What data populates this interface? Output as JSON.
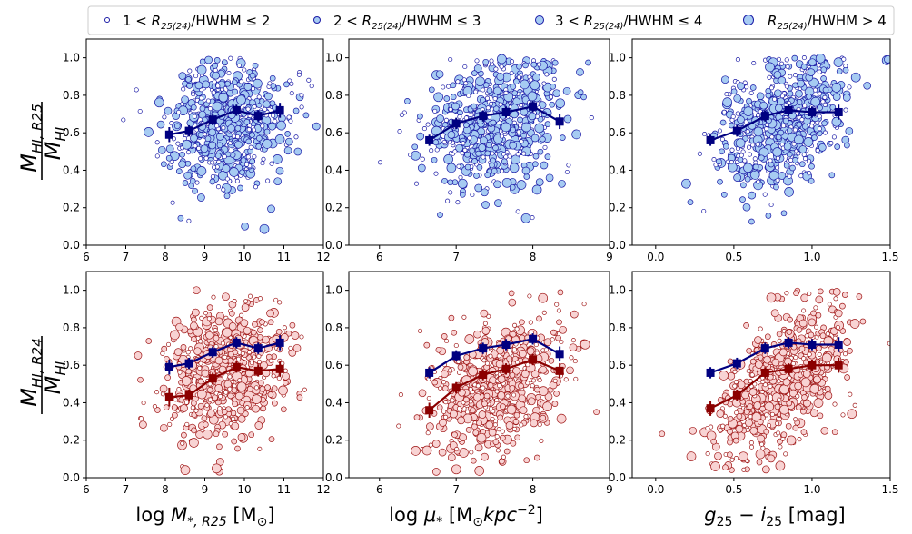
{
  "legend": {
    "placement": "top-center",
    "entries": [
      {
        "label_pre": "1 < ",
        "label_r": "R",
        "label_sub": "25(24)",
        "label_post": "/HWHM ≤ 2"
      },
      {
        "label_pre": "2 < ",
        "label_r": "R",
        "label_sub": "25(24)",
        "label_post": "/HWHM ≤ 3"
      },
      {
        "label_pre": "3 < ",
        "label_r": "R",
        "label_sub": "25(24)",
        "label_post": "/HWHM ≤ 4"
      },
      {
        "label_pre": "",
        "label_r": "R",
        "label_sub": "25(24)",
        "label_post": "/HWHM > 4"
      }
    ]
  },
  "row_labels": [
    {
      "num": "M",
      "num_sub": "HI, R25",
      "den": "M",
      "den_sub": "HI"
    },
    {
      "num": "M",
      "num_sub": "HI, R24",
      "den": "M",
      "den_sub": "HI"
    }
  ],
  "col_labels": [
    {
      "pre": "log ",
      "var": "M",
      "sub": "*, R25",
      "post": " [M",
      "post_sub": "⊙",
      "post_end": "]"
    },
    {
      "pre": "log ",
      "var": "μ",
      "sub": "*",
      "post": " [M",
      "post_sub": "⊙",
      "post_end": "kpc",
      "post_sup": "−2",
      "post_close": "]"
    },
    {
      "pre": "",
      "var": "g",
      "sub": "25",
      "post": " − ",
      "var2": "i",
      "sub2": "25",
      "post_end": " [mag]"
    }
  ],
  "colors": {
    "blue_edge": "#1a1aa6",
    "blue_fill": "#a6cbf2",
    "red_edge": "#a01818",
    "red_fill": "#f8d3d3",
    "blue_line": "#000080",
    "red_line": "#8b0000"
  },
  "chart_data": [
    {
      "type": "scatter",
      "row": 0,
      "col": 0,
      "xlim": [
        6,
        12
      ],
      "ylim": [
        0,
        1.1
      ],
      "xticks": [
        6,
        7,
        8,
        9,
        10,
        11,
        12
      ],
      "yticks": [
        0.0,
        0.2,
        0.4,
        0.6,
        0.8,
        1.0
      ],
      "xtick_labels": [
        "6",
        "7",
        "8",
        "9",
        "10",
        "11",
        "12"
      ],
      "ytick_labels": [
        "0.0",
        "0.2",
        "0.4",
        "0.6",
        "0.8",
        "1.0"
      ],
      "point_style": "blue",
      "scatter_x_center": 9.5,
      "scatter_x_spread": 1.3,
      "scatter_y_slope": 0.04,
      "scatter_y_base": 0.65,
      "binned_series": [
        {
          "style": "blue",
          "x": [
            8.1,
            8.6,
            9.2,
            9.8,
            10.35,
            10.9
          ],
          "y": [
            0.59,
            0.61,
            0.67,
            0.72,
            0.69,
            0.72
          ],
          "err": [
            0.04,
            0.03,
            0.03,
            0.03,
            0.03,
            0.04
          ]
        }
      ]
    },
    {
      "type": "scatter",
      "row": 0,
      "col": 1,
      "xlim": [
        5.6,
        9
      ],
      "ylim": [
        0,
        1.1
      ],
      "xticks": [
        6,
        7,
        8,
        9
      ],
      "yticks": [
        0.0,
        0.2,
        0.4,
        0.6,
        0.8,
        1.0
      ],
      "xtick_labels": [
        "6",
        "7",
        "8",
        "9"
      ],
      "ytick_labels": [
        "0.0",
        "0.2",
        "0.4",
        "0.6",
        "0.8",
        "1.0"
      ],
      "point_style": "blue",
      "scatter_x_center": 7.5,
      "scatter_x_spread": 0.75,
      "scatter_y_slope": 0.07,
      "scatter_y_base": 0.65,
      "binned_series": [
        {
          "style": "blue",
          "x": [
            6.65,
            7.0,
            7.35,
            7.65,
            8.0,
            8.35
          ],
          "y": [
            0.56,
            0.65,
            0.69,
            0.71,
            0.74,
            0.66
          ],
          "err": [
            0.03,
            0.03,
            0.03,
            0.03,
            0.03,
            0.04
          ]
        }
      ]
    },
    {
      "type": "scatter",
      "row": 0,
      "col": 2,
      "xlim": [
        -0.15,
        1.5
      ],
      "ylim": [
        0,
        1.1
      ],
      "xticks": [
        0.0,
        0.5,
        1.0,
        1.5
      ],
      "yticks": [
        0.0,
        0.2,
        0.4,
        0.6,
        0.8,
        1.0
      ],
      "xtick_labels": [
        "0.0",
        "0.5",
        "1.0",
        "1.5"
      ],
      "ytick_labels": [
        "0.0",
        "0.2",
        "0.4",
        "0.6",
        "0.8",
        "1.0"
      ],
      "point_style": "blue",
      "scatter_x_center": 0.8,
      "scatter_x_spread": 0.35,
      "scatter_y_slope": 0.12,
      "scatter_y_base": 0.65,
      "binned_series": [
        {
          "style": "blue",
          "x": [
            0.35,
            0.52,
            0.7,
            0.85,
            1.0,
            1.17
          ],
          "y": [
            0.56,
            0.61,
            0.69,
            0.72,
            0.71,
            0.71
          ],
          "err": [
            0.03,
            0.03,
            0.03,
            0.03,
            0.03,
            0.04
          ]
        }
      ]
    },
    {
      "type": "scatter",
      "row": 1,
      "col": 0,
      "xlim": [
        6,
        12
      ],
      "ylim": [
        0,
        1.1
      ],
      "xticks": [
        6,
        7,
        8,
        9,
        10,
        11,
        12
      ],
      "yticks": [
        0.0,
        0.2,
        0.4,
        0.6,
        0.8,
        1.0
      ],
      "xtick_labels": [
        "6",
        "7",
        "8",
        "9",
        "10",
        "11",
        "12"
      ],
      "ytick_labels": [
        "0.0",
        "0.2",
        "0.4",
        "0.6",
        "0.8",
        "1.0"
      ],
      "point_style": "red",
      "scatter_x_center": 9.5,
      "scatter_x_spread": 1.3,
      "scatter_y_slope": 0.06,
      "scatter_y_base": 0.55,
      "binned_series": [
        {
          "style": "blue",
          "x": [
            8.1,
            8.6,
            9.2,
            9.8,
            10.35,
            10.9
          ],
          "y": [
            0.59,
            0.61,
            0.67,
            0.72,
            0.69,
            0.72
          ],
          "err": [
            0.04,
            0.03,
            0.03,
            0.03,
            0.03,
            0.04
          ]
        },
        {
          "style": "red",
          "x": [
            8.1,
            8.6,
            9.2,
            9.8,
            10.35,
            10.9
          ],
          "y": [
            0.43,
            0.44,
            0.53,
            0.59,
            0.57,
            0.58
          ],
          "err": [
            0.05,
            0.03,
            0.03,
            0.03,
            0.03,
            0.04
          ]
        }
      ]
    },
    {
      "type": "scatter",
      "row": 1,
      "col": 1,
      "xlim": [
        5.6,
        9
      ],
      "ylim": [
        0,
        1.1
      ],
      "xticks": [
        6,
        7,
        8,
        9
      ],
      "yticks": [
        0.0,
        0.2,
        0.4,
        0.6,
        0.8,
        1.0
      ],
      "xtick_labels": [
        "6",
        "7",
        "8",
        "9"
      ],
      "ytick_labels": [
        "0.0",
        "0.2",
        "0.4",
        "0.6",
        "0.8",
        "1.0"
      ],
      "point_style": "red",
      "scatter_x_center": 7.5,
      "scatter_x_spread": 0.75,
      "scatter_y_slope": 0.12,
      "scatter_y_base": 0.5,
      "binned_series": [
        {
          "style": "blue",
          "x": [
            6.65,
            7.0,
            7.35,
            7.65,
            8.0,
            8.35
          ],
          "y": [
            0.56,
            0.65,
            0.69,
            0.71,
            0.74,
            0.66
          ],
          "err": [
            0.03,
            0.03,
            0.03,
            0.03,
            0.03,
            0.04
          ]
        },
        {
          "style": "red",
          "x": [
            6.65,
            7.0,
            7.35,
            7.65,
            8.0,
            8.35
          ],
          "y": [
            0.36,
            0.48,
            0.55,
            0.58,
            0.63,
            0.57
          ],
          "err": [
            0.04,
            0.03,
            0.03,
            0.03,
            0.03,
            0.04
          ]
        }
      ]
    },
    {
      "type": "scatter",
      "row": 1,
      "col": 2,
      "xlim": [
        -0.15,
        1.5
      ],
      "ylim": [
        0,
        1.1
      ],
      "xticks": [
        0.0,
        0.5,
        1.0,
        1.5
      ],
      "yticks": [
        0.0,
        0.2,
        0.4,
        0.6,
        0.8,
        1.0
      ],
      "xtick_labels": [
        "0.0",
        "0.5",
        "1.0",
        "1.5"
      ],
      "ytick_labels": [
        "0.0",
        "0.2",
        "0.4",
        "0.6",
        "0.8",
        "1.0"
      ],
      "point_style": "red",
      "scatter_x_center": 0.8,
      "scatter_x_spread": 0.35,
      "scatter_y_slope": 0.18,
      "scatter_y_base": 0.52,
      "binned_series": [
        {
          "style": "blue",
          "x": [
            0.35,
            0.52,
            0.7,
            0.85,
            1.0,
            1.17
          ],
          "y": [
            0.56,
            0.61,
            0.69,
            0.72,
            0.71,
            0.71
          ],
          "err": [
            0.03,
            0.03,
            0.03,
            0.03,
            0.03,
            0.04
          ]
        },
        {
          "style": "red",
          "x": [
            0.35,
            0.52,
            0.7,
            0.85,
            1.0,
            1.17
          ],
          "y": [
            0.37,
            0.44,
            0.56,
            0.58,
            0.6,
            0.6
          ],
          "err": [
            0.04,
            0.03,
            0.03,
            0.03,
            0.03,
            0.04
          ]
        }
      ]
    }
  ]
}
